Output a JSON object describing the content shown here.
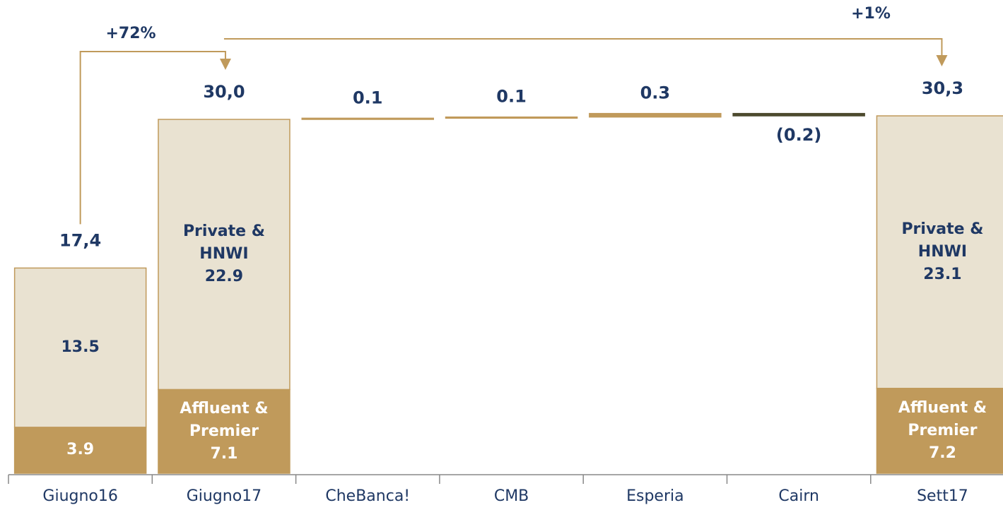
{
  "chart_data": {
    "type": "waterfall",
    "categories": [
      "Giugno16",
      "Giugno17",
      "CheBanca!",
      "CMB",
      "Esperia",
      "Cairn",
      "Sett17"
    ],
    "series": [
      {
        "name": "Affluent & Premier",
        "color": "#c09a5b",
        "values": [
          3.9,
          7.1,
          null,
          null,
          null,
          null,
          7.2
        ]
      },
      {
        "name": "Private & HNWI",
        "color": "#e9e2d1",
        "values": [
          13.5,
          22.9,
          null,
          null,
          null,
          null,
          23.1
        ]
      }
    ],
    "show_name": [
      false,
      true,
      false,
      false,
      false,
      false,
      true
    ],
    "totals": [
      17.4,
      30.0,
      null,
      null,
      null,
      null,
      30.3
    ],
    "totals_labels": [
      "17,4",
      "30,0",
      null,
      null,
      null,
      null,
      "30,3"
    ],
    "deltas": [
      null,
      null,
      0.1,
      0.1,
      0.3,
      -0.2,
      null
    ],
    "deltas_labels": [
      null,
      null,
      null,
      null,
      null,
      "(0.2)",
      null
    ],
    "delta_color": "#c09a5b",
    "negative_color": "#4d4a2e",
    "annotations": [
      {
        "text": "+72%",
        "from": 0,
        "to": 1
      },
      {
        "text": "+1%",
        "from": 1,
        "to": 6
      }
    ]
  }
}
